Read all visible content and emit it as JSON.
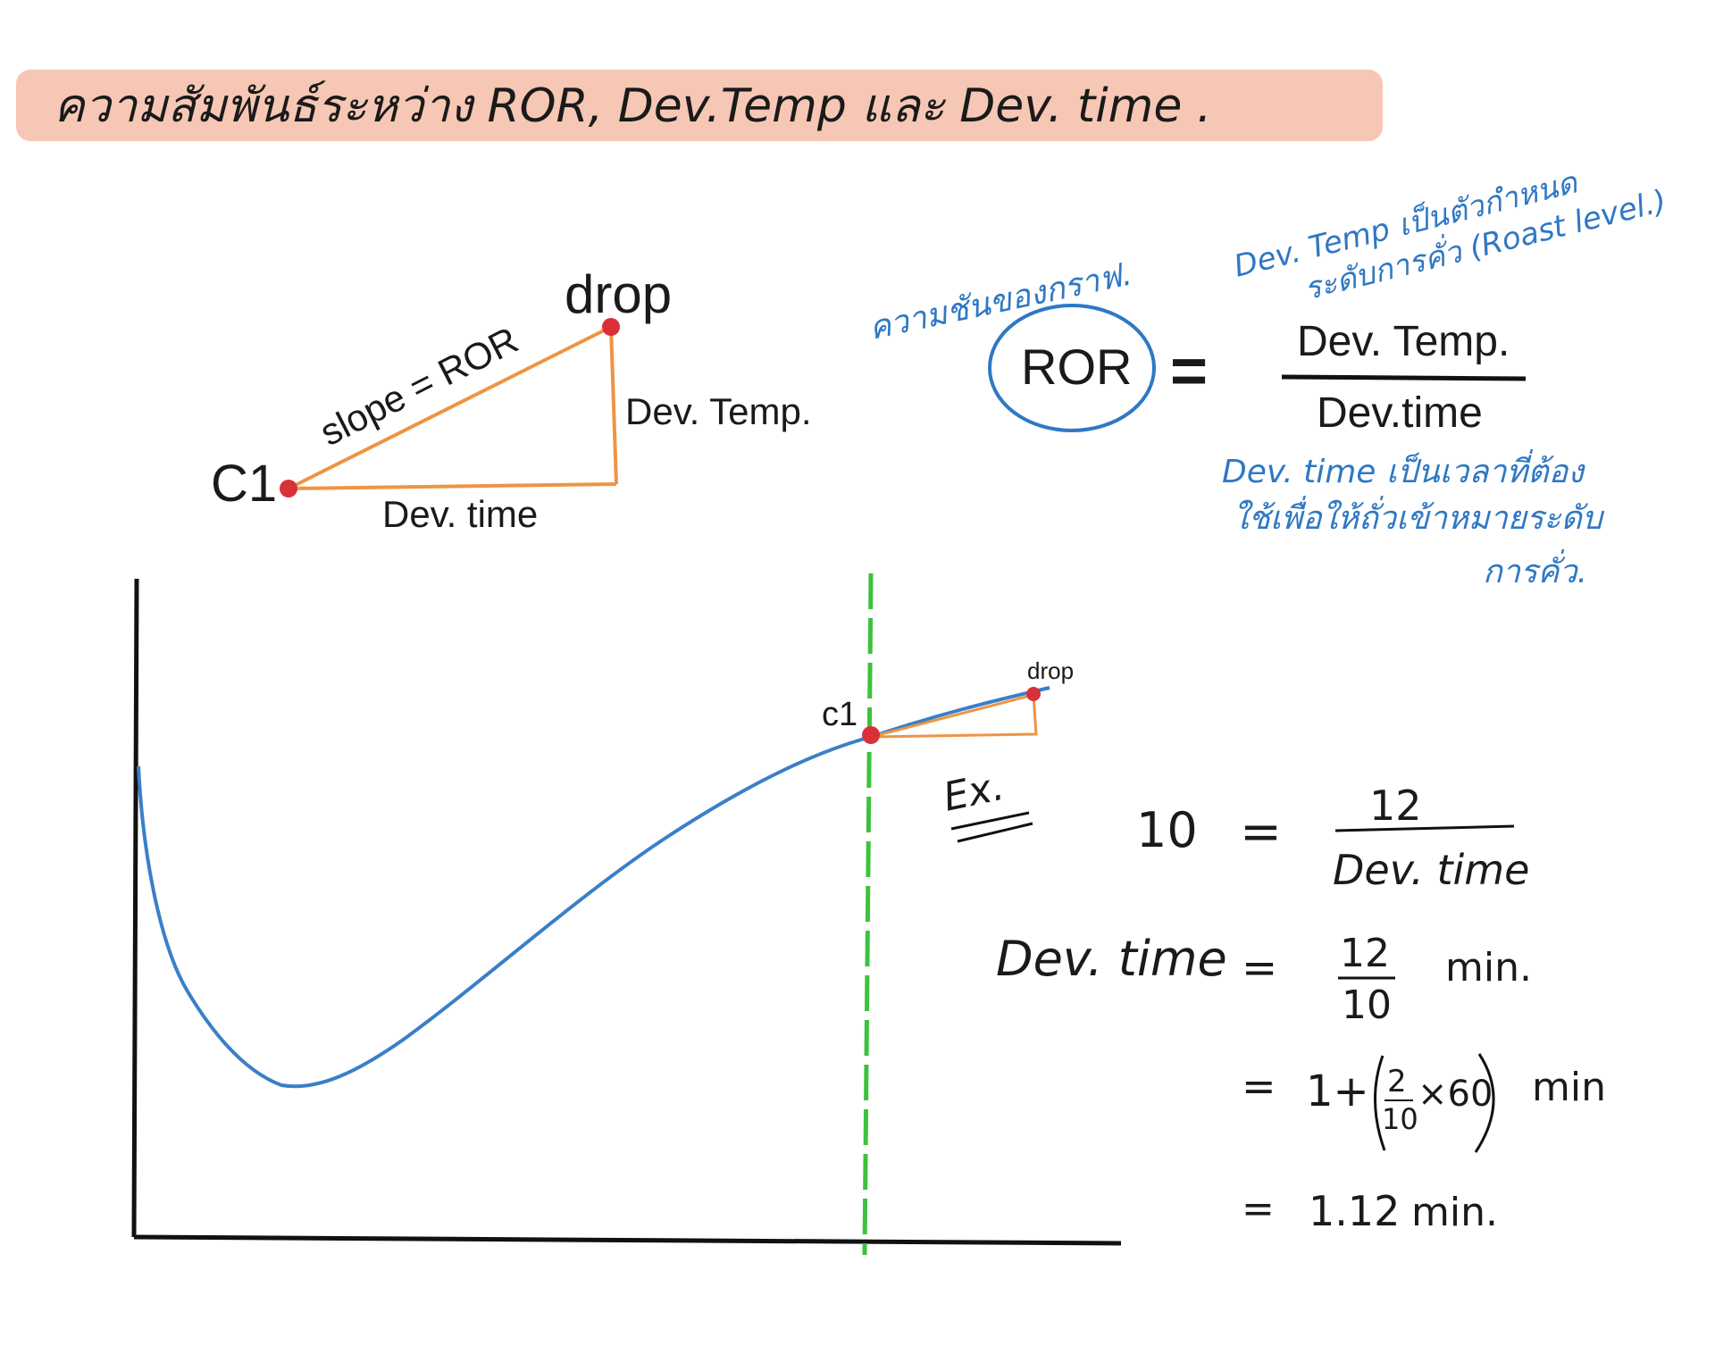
{
  "title": "ความสัมพันธ์ระหว่าง ROR, Dev.Temp และ Dev. time .",
  "colors": {
    "title_highlight": "#f6c7b4",
    "curve": "#3a7fc8",
    "triangle": "#ef9443",
    "point": "#d9303a",
    "c1_line": "#3cc23c",
    "blue_note": "#2f78c4"
  },
  "triangle_diagram": {
    "drop_label": "drop",
    "c1_label": "C1",
    "slope_label": "slope = ROR",
    "vertical_label": "Dev. Temp.",
    "horizontal_label": "Dev. time"
  },
  "formula": {
    "slope_note": "ความชันของกราฟ.",
    "lhs": "ROR",
    "equals": "=",
    "numerator": "Dev. Temp.",
    "denominator": "Dev.time",
    "temp_note_line1": "Dev. Temp เป็นตัวกำหนด",
    "temp_note_line2": "ระดับการคั่ว (Roast level.)",
    "time_note_line1": "Dev. time เป็นเวลาที่ต้อง",
    "time_note_line2": "ใช้เพื่อให้ถั่วเข้าหมายระดับ",
    "time_note_line3": "การคั่ว."
  },
  "curve_graph": {
    "c1_label": "c1",
    "drop_label": "drop"
  },
  "example": {
    "label": "Ex.",
    "row1": {
      "lhs": "10",
      "eq": "=",
      "num": "12",
      "den": "Dev. time"
    },
    "row2": {
      "lhs": "Dev. time",
      "eq": "=",
      "num": "12",
      "den": "10",
      "unit": "min."
    },
    "row3": {
      "eq": "=",
      "expr_left": "1+",
      "frac_num": "2",
      "frac_den": "10",
      "mult": "×60",
      "unit": "min"
    },
    "row4": {
      "eq": "=",
      "value": "1.12",
      "unit": "min."
    }
  }
}
